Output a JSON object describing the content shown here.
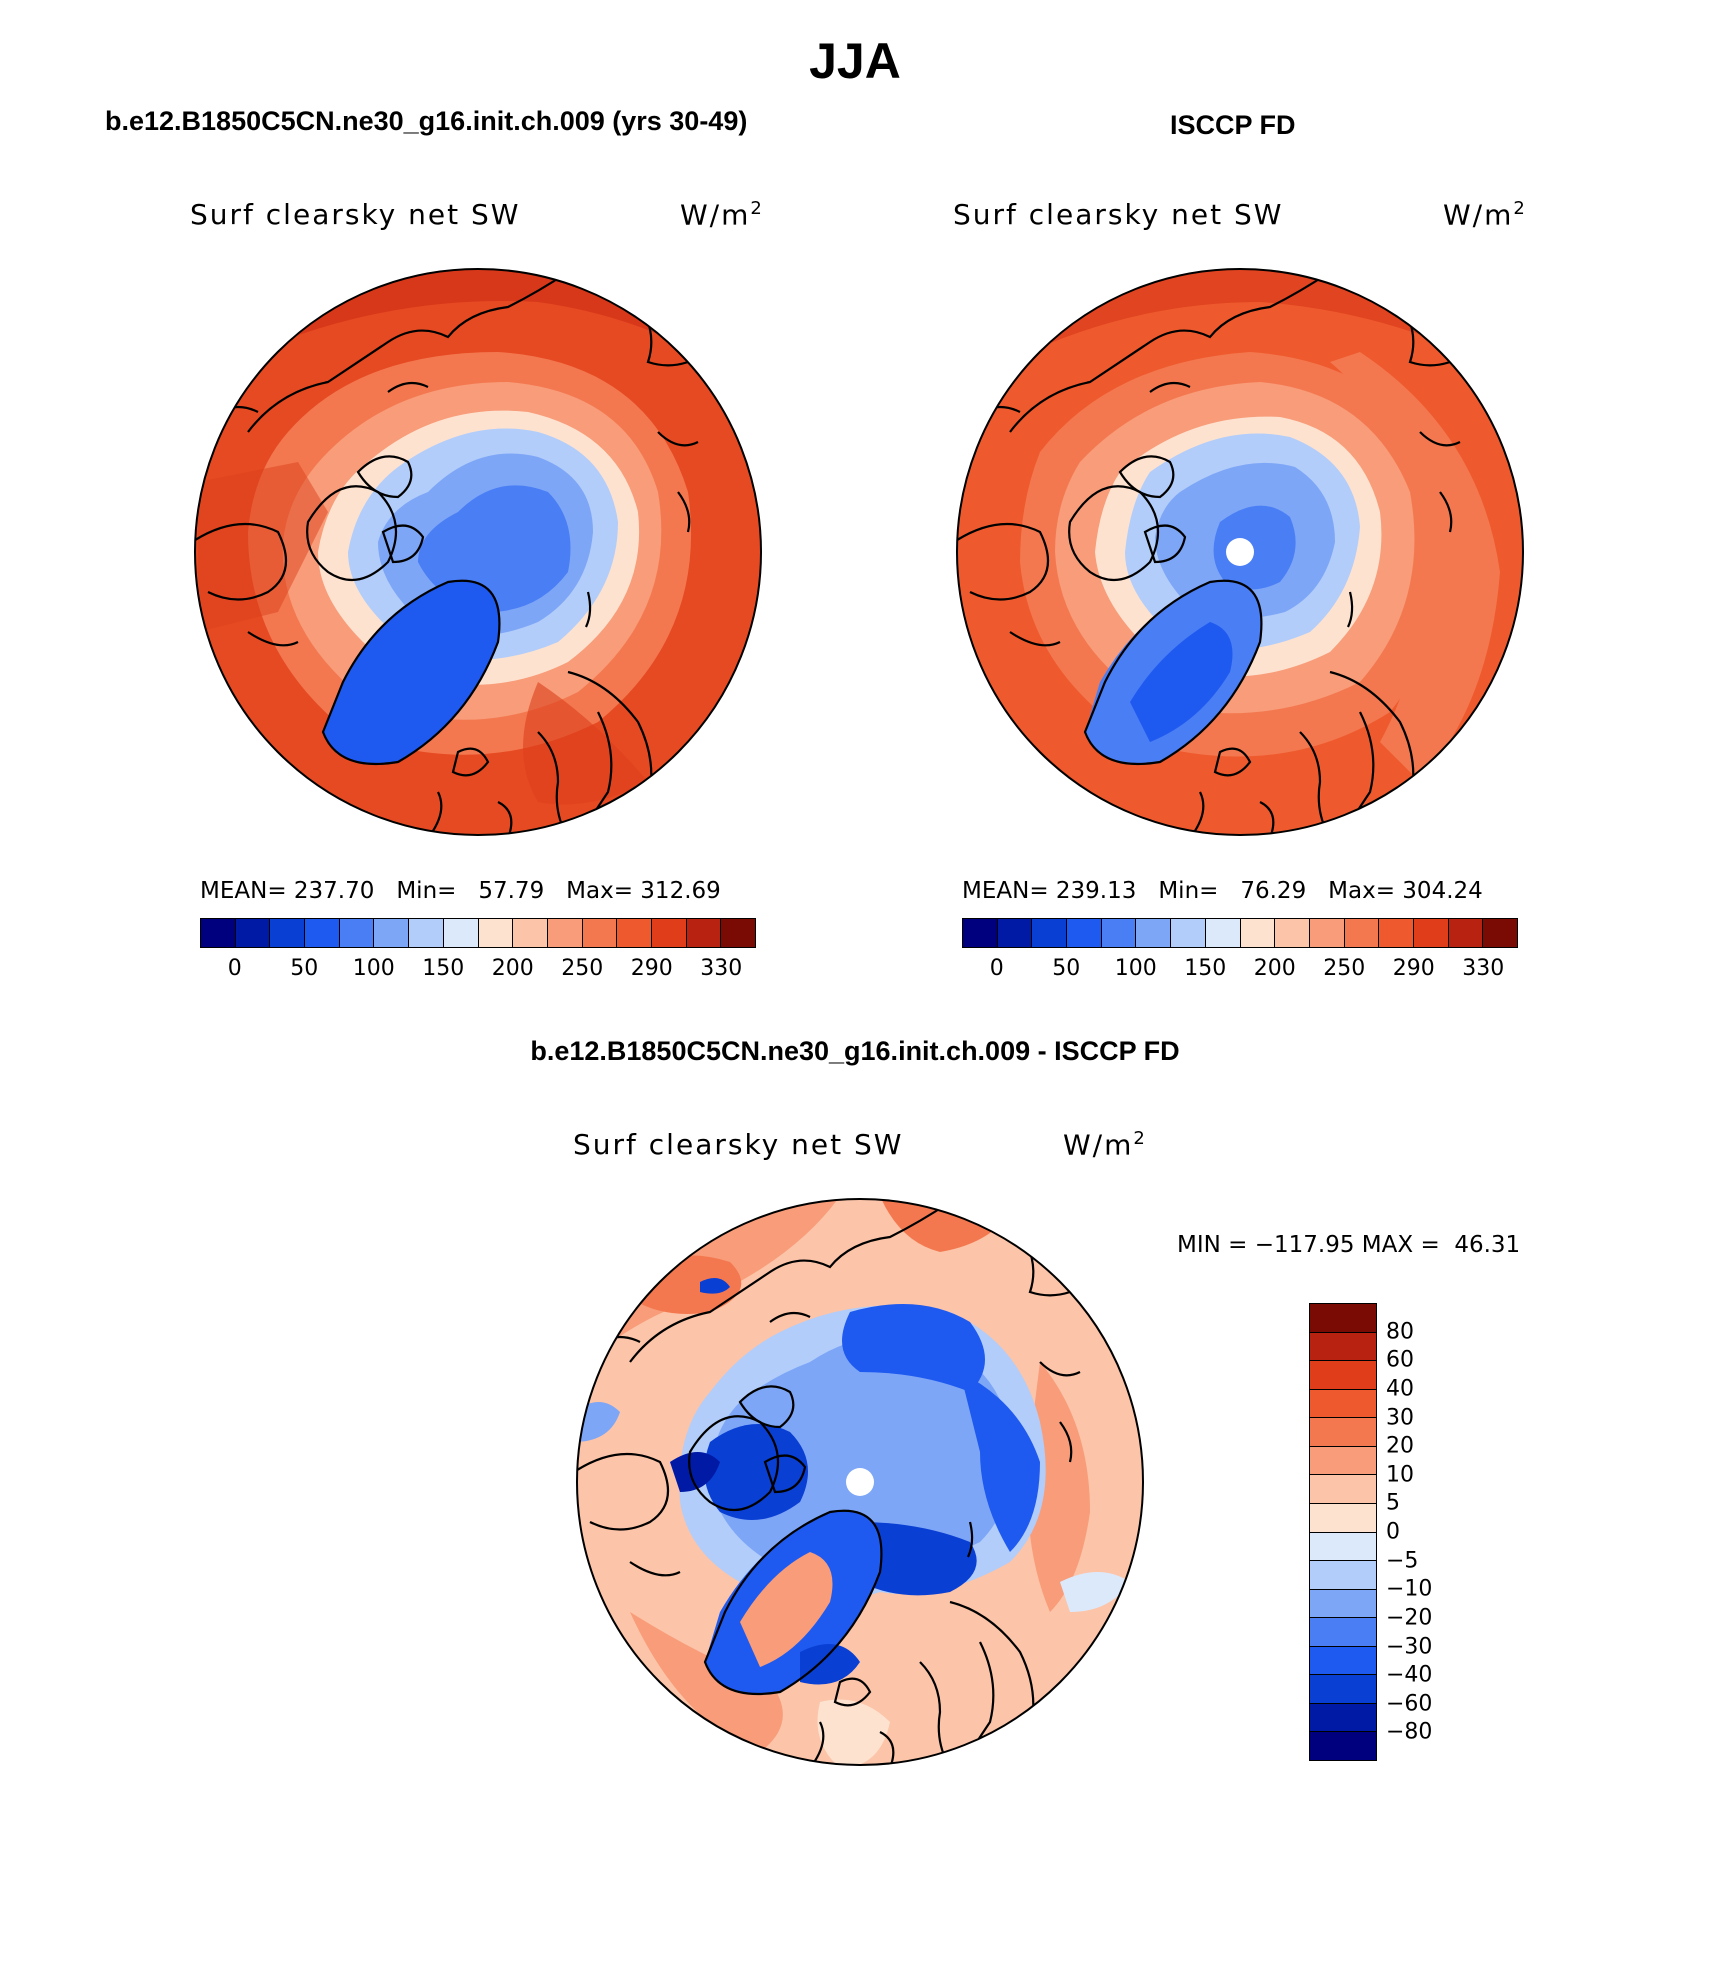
{
  "title": "JJA",
  "panels": {
    "model": {
      "header": "b.e12.B1850C5CN.ne30_g16.init.ch.009 (yrs 30-49)",
      "variable": "Surf clearsky net SW",
      "units_base": "W/m",
      "units_exp": "2",
      "mean_label": "MEAN=",
      "mean_value": "237.70",
      "min_label": "Min=",
      "min_value": "57.79",
      "max_label": "Max=",
      "max_value": "312.69"
    },
    "obs": {
      "header": "ISCCP FD",
      "variable": "Surf clearsky net SW",
      "units_base": "W/m",
      "units_exp": "2",
      "mean_label": "MEAN=",
      "mean_value": "239.13",
      "min_label": "Min=",
      "min_value": "76.29",
      "max_label": "Max=",
      "max_value": "304.24"
    },
    "diff": {
      "header": "b.e12.B1850C5CN.ne30_g16.init.ch.009 - ISCCP FD",
      "variable": "Surf clearsky net SW",
      "units_base": "W/m",
      "units_exp": "2",
      "min_label": "MIN =",
      "min_value": "−117.95",
      "max_label": "MAX =",
      "max_value": "46.31"
    }
  },
  "colorbar_main": {
    "colors": [
      "#00007f",
      "#001aa6",
      "#0a3fd4",
      "#1f5af0",
      "#4a7ef5",
      "#7ea6f7",
      "#b2cdfa",
      "#dce9fb",
      "#fde2d0",
      "#fcc4a8",
      "#f89c79",
      "#f3784f",
      "#ee5a2d",
      "#e03d1a",
      "#b82210",
      "#7a0a04"
    ],
    "tick_labels": [
      "0",
      "50",
      "100",
      "150",
      "200",
      "250",
      "290",
      "330"
    ]
  },
  "colorbar_diff": {
    "colors": [
      "#7a0a04",
      "#b82210",
      "#e03d1a",
      "#ee5a2d",
      "#f3784f",
      "#f89c79",
      "#fcc4a8",
      "#fde2d0",
      "#dce9fb",
      "#b2cdfa",
      "#7ea6f7",
      "#4a7ef5",
      "#1f5af0",
      "#0a3fd4",
      "#001aa6",
      "#00007f"
    ],
    "tick_labels": [
      "80",
      "60",
      "40",
      "30",
      "20",
      "10",
      "5",
      "0",
      "−5",
      "−10",
      "−20",
      "−30",
      "−40",
      "−60",
      "−80"
    ]
  }
}
